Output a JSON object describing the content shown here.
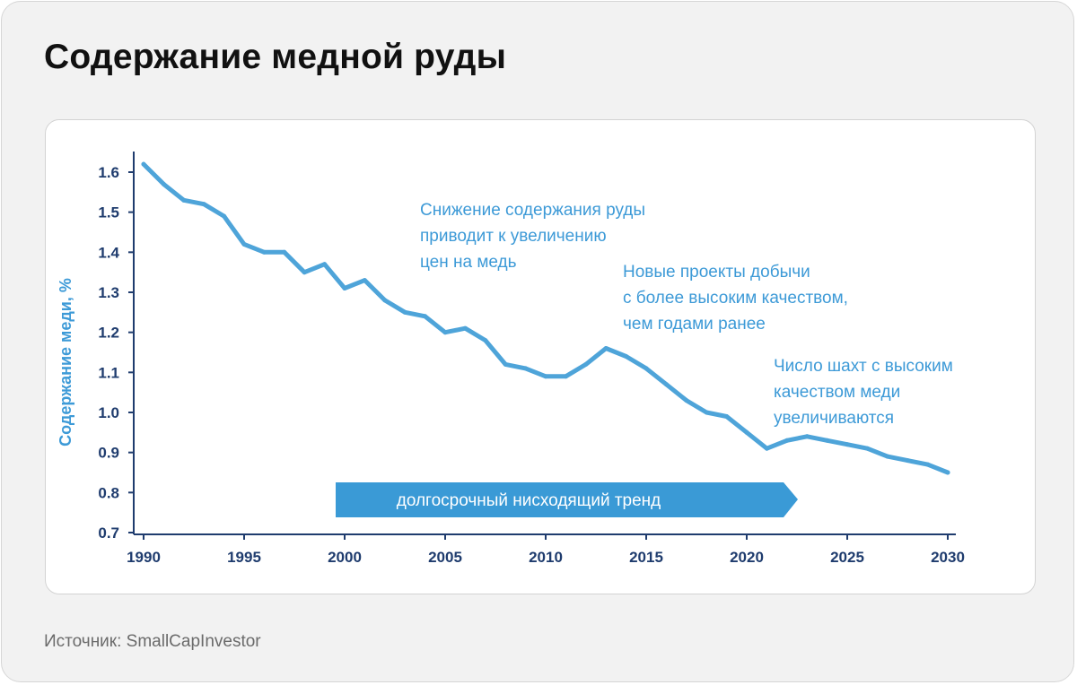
{
  "title": "Содержание медной руды",
  "source": "Источник: SmallCapInvestor",
  "colors": {
    "line": "#4ea4d9",
    "text_accent": "#3d9ad7",
    "axis": "#1f3c6e",
    "arrow": "#3a9ad6"
  },
  "chart_data": {
    "type": "line",
    "ylabel": "Содержание меди, %",
    "xlabel": "",
    "ylim": [
      0.7,
      1.65
    ],
    "xlim": [
      1990,
      2030
    ],
    "yticks": [
      "1.6",
      "1.5",
      "1.4",
      "1.3",
      "1.2",
      "1.1",
      "1.0",
      "0.9",
      "0.8",
      "0.7"
    ],
    "xticks": [
      "1990",
      "1995",
      "2000",
      "2005",
      "2010",
      "2015",
      "2020",
      "2025",
      "2030"
    ],
    "grid": false,
    "x": [
      1990,
      1991,
      1992,
      1993,
      1994,
      1995,
      1996,
      1997,
      1998,
      1999,
      2000,
      2001,
      2002,
      2003,
      2004,
      2005,
      2006,
      2007,
      2008,
      2009,
      2010,
      2011,
      2012,
      2013,
      2014,
      2015,
      2016,
      2017,
      2018,
      2019,
      2020,
      2021,
      2022,
      2023,
      2024,
      2025,
      2026,
      2027,
      2028,
      2029,
      2030
    ],
    "values": [
      1.62,
      1.57,
      1.53,
      1.52,
      1.49,
      1.42,
      1.4,
      1.4,
      1.35,
      1.37,
      1.31,
      1.33,
      1.28,
      1.25,
      1.24,
      1.2,
      1.21,
      1.18,
      1.12,
      1.11,
      1.09,
      1.09,
      1.12,
      1.16,
      1.14,
      1.11,
      1.07,
      1.03,
      1.0,
      0.99,
      0.95,
      0.91,
      0.93,
      0.94,
      0.93,
      0.92,
      0.91,
      0.89,
      0.88,
      0.87,
      0.85
    ],
    "annotations": [
      "Снижение содержания руды\nприводит к увеличению\nцен на медь",
      "Новые проекты добычи\nс более высоким качеством,\nчем годами ранее",
      "Число шахт с высоким\nкачеством меди\nувеличиваются"
    ],
    "trend_label": "долгосрочный нисходящий тренд"
  }
}
